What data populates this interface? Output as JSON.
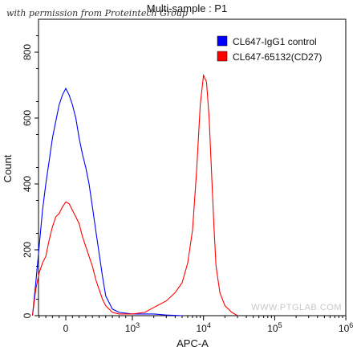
{
  "watermark_top": "with permission from Proteintech Group",
  "watermark_bottom": "WWW.PTGLAB.COM",
  "chart_data": {
    "type": "area",
    "title": "Multi-sample : P1",
    "xlabel": "APC-A",
    "ylabel": "Count",
    "xscale": "biexponential",
    "ylim": [
      0,
      900
    ],
    "y_ticks": [
      0,
      200,
      400,
      600,
      800
    ],
    "x_ticks": [
      {
        "value": 0,
        "label": "0"
      },
      {
        "value": 1000,
        "label": "10",
        "exp": "3"
      },
      {
        "value": 10000,
        "label": "10",
        "exp": "4"
      },
      {
        "value": 100000,
        "label": "10",
        "exp": "5"
      },
      {
        "value": 1000000,
        "label": "10",
        "exp": "6"
      }
    ],
    "legend_position": "top-right",
    "series": [
      {
        "name": "CL647-IgG1 control",
        "color": "#0000ff",
        "points": [
          [
            -500,
            0
          ],
          [
            -450,
            100
          ],
          [
            -400,
            210
          ],
          [
            -350,
            320
          ],
          [
            -300,
            400
          ],
          [
            -250,
            470
          ],
          [
            -200,
            540
          ],
          [
            -150,
            590
          ],
          [
            -100,
            640
          ],
          [
            -50,
            670
          ],
          [
            0,
            690
          ],
          [
            50,
            670
          ],
          [
            100,
            640
          ],
          [
            150,
            600
          ],
          [
            200,
            540
          ],
          [
            250,
            490
          ],
          [
            300,
            450
          ],
          [
            350,
            400
          ],
          [
            400,
            330
          ],
          [
            450,
            260
          ],
          [
            500,
            190
          ],
          [
            550,
            120
          ],
          [
            600,
            60
          ],
          [
            700,
            20
          ],
          [
            800,
            10
          ],
          [
            1000,
            5
          ],
          [
            1500,
            5
          ],
          [
            2000,
            5
          ],
          [
            3000,
            2
          ],
          [
            5000,
            0
          ]
        ]
      },
      {
        "name": "CL647-65132(CD27)",
        "color": "#ff0000",
        "points": [
          [
            -500,
            0
          ],
          [
            -450,
            80
          ],
          [
            -400,
            130
          ],
          [
            -350,
            160
          ],
          [
            -300,
            180
          ],
          [
            -250,
            230
          ],
          [
            -200,
            270
          ],
          [
            -150,
            300
          ],
          [
            -100,
            310
          ],
          [
            -50,
            330
          ],
          [
            0,
            345
          ],
          [
            50,
            340
          ],
          [
            100,
            320
          ],
          [
            150,
            300
          ],
          [
            200,
            280
          ],
          [
            250,
            240
          ],
          [
            300,
            210
          ],
          [
            350,
            180
          ],
          [
            400,
            150
          ],
          [
            450,
            110
          ],
          [
            500,
            80
          ],
          [
            550,
            50
          ],
          [
            600,
            30
          ],
          [
            700,
            10
          ],
          [
            800,
            5
          ],
          [
            1000,
            5
          ],
          [
            1500,
            10
          ],
          [
            2000,
            25
          ],
          [
            3000,
            45
          ],
          [
            4000,
            70
          ],
          [
            5000,
            100
          ],
          [
            6000,
            160
          ],
          [
            7000,
            260
          ],
          [
            8000,
            440
          ],
          [
            9000,
            640
          ],
          [
            10000,
            730
          ],
          [
            11000,
            710
          ],
          [
            12000,
            600
          ],
          [
            13000,
            430
          ],
          [
            14000,
            270
          ],
          [
            15000,
            150
          ],
          [
            17000,
            70
          ],
          [
            20000,
            30
          ],
          [
            25000,
            10
          ],
          [
            30000,
            0
          ]
        ]
      }
    ]
  }
}
